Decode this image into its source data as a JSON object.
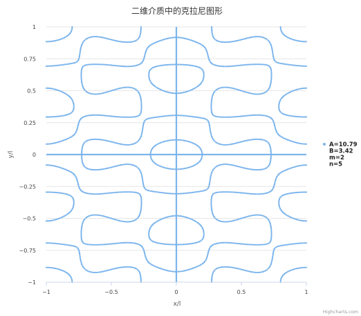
{
  "chart_data": {
    "type": "scatter",
    "title": "二维介质中的克拉尼图形",
    "xlabel": "x/l",
    "ylabel": "y/l",
    "xlim": [
      -1,
      1
    ],
    "ylim": [
      -1,
      1
    ],
    "x_ticks": [
      "−1",
      "−0.5",
      "0",
      "0.5",
      "1"
    ],
    "y_ticks": [
      "1",
      "0.75",
      "0.5",
      "0.25",
      "0",
      "−0.25",
      "−0.5",
      "−0.75",
      "−1"
    ],
    "grid": "horizontal",
    "legend_position": "right",
    "series": [
      {
        "name": "A=10.79 B=3.42 m=2 n=5",
        "legend_lines": [
          "A=10.79",
          "B=3.42",
          "m=2",
          "n=5"
        ],
        "color": "#7cb5ec",
        "description": "Chladni nodal lines: A*cos(m*pi*x)*cos(n*pi*y) + B*cos(n*pi*x)*cos(m*pi*y) = 0 plus x=0, y=0 axes",
        "params": {
          "A": 10.79,
          "B": 3.42,
          "m": 2,
          "n": 5
        }
      }
    ]
  },
  "credits": "Highcharts.com"
}
